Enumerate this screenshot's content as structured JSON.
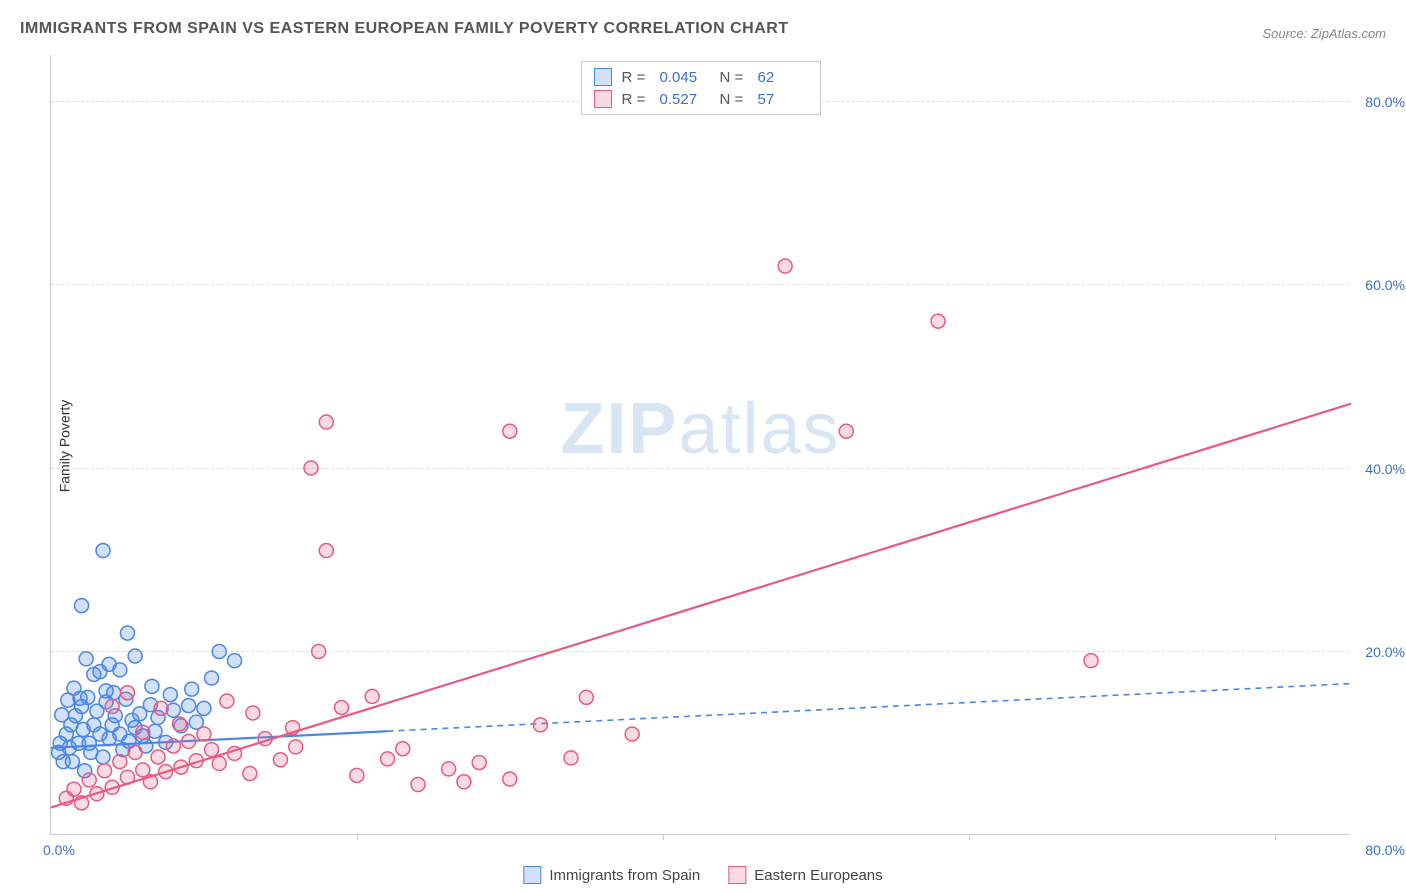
{
  "title": "IMMIGRANTS FROM SPAIN VS EASTERN EUROPEAN FAMILY POVERTY CORRELATION CHART",
  "source": "Source: ZipAtlas.com",
  "watermark_zip": "ZIP",
  "watermark_atlas": "atlas",
  "y_axis_title": "Family Poverty",
  "chart": {
    "type": "scatter",
    "background_color": "#ffffff",
    "grid_color": "#dddddd",
    "axis_color": "#cccccc",
    "xlim": [
      0,
      85
    ],
    "ylim": [
      0,
      85
    ],
    "y_ticks": [
      20,
      40,
      60,
      80
    ],
    "y_tick_labels": [
      "20.0%",
      "40.0%",
      "60.0%",
      "80.0%"
    ],
    "x_ticks": [
      20,
      40,
      60,
      80
    ],
    "x_label_start": "0.0%",
    "x_label_end": "80.0%",
    "marker_radius": 7,
    "marker_stroke_width": 1.5,
    "marker_fill_opacity": 0.25,
    "trend_line_width": 2.2,
    "series": [
      {
        "id": "spain",
        "label": "Immigrants from Spain",
        "color": "#4a86e8",
        "fill": "rgba(74,134,232,0.25)",
        "r_value": "0.045",
        "n_value": "62",
        "trend": {
          "x1": 0,
          "y1": 9.5,
          "x2": 85,
          "y2": 16.5
        },
        "trend_solid_until_x": 22,
        "trend_dash": "6,5",
        "points": [
          [
            0.5,
            9
          ],
          [
            0.6,
            10
          ],
          [
            0.8,
            8
          ],
          [
            1.0,
            11
          ],
          [
            1.2,
            9.5
          ],
          [
            1.3,
            12
          ],
          [
            1.4,
            8
          ],
          [
            1.6,
            13
          ],
          [
            1.8,
            10
          ],
          [
            2.0,
            14
          ],
          [
            2.1,
            11.5
          ],
          [
            2.2,
            7
          ],
          [
            2.4,
            15
          ],
          [
            2.5,
            10
          ],
          [
            2.6,
            9
          ],
          [
            2.8,
            12
          ],
          [
            3.0,
            13.5
          ],
          [
            3.2,
            11
          ],
          [
            3.4,
            8.5
          ],
          [
            3.6,
            14.5
          ],
          [
            3.8,
            10.5
          ],
          [
            4.0,
            12
          ],
          [
            4.2,
            13
          ],
          [
            4.5,
            11
          ],
          [
            4.7,
            9.3
          ],
          [
            4.9,
            14.8
          ],
          [
            5.1,
            10.2
          ],
          [
            5.3,
            12.5
          ],
          [
            5.5,
            11.7
          ],
          [
            5.8,
            13.2
          ],
          [
            6.0,
            10.8
          ],
          [
            6.2,
            9.7
          ],
          [
            6.5,
            14.2
          ],
          [
            6.8,
            11.3
          ],
          [
            7.0,
            12.8
          ],
          [
            7.5,
            10.1
          ],
          [
            8.0,
            13.6
          ],
          [
            8.5,
            11.9
          ],
          [
            9.0,
            14.1
          ],
          [
            9.5,
            12.3
          ],
          [
            10.0,
            13.8
          ],
          [
            2.0,
            25
          ],
          [
            3.4,
            31
          ],
          [
            4.5,
            18
          ],
          [
            5.0,
            22
          ],
          [
            5.5,
            19.5
          ],
          [
            3.2,
            17.8
          ],
          [
            11,
            20
          ],
          [
            12,
            19
          ],
          [
            1.5,
            16
          ],
          [
            2.8,
            17.5
          ],
          [
            4.1,
            15.5
          ],
          [
            6.6,
            16.2
          ],
          [
            7.8,
            15.3
          ],
          [
            9.2,
            15.9
          ],
          [
            10.5,
            17.1
          ],
          [
            3.8,
            18.6
          ],
          [
            2.3,
            19.2
          ],
          [
            1.1,
            14.7
          ],
          [
            0.7,
            13.1
          ],
          [
            1.9,
            14.9
          ],
          [
            3.6,
            15.7
          ]
        ]
      },
      {
        "id": "eastern",
        "label": "Eastern Europeans",
        "color": "#e85a7f",
        "fill": "rgba(232,90,127,0.22)",
        "r_value": "0.527",
        "n_value": "57",
        "trend": {
          "x1": 0,
          "y1": 3,
          "x2": 85,
          "y2": 47
        },
        "trend_solid_until_x": 85,
        "trend_dash": "",
        "points": [
          [
            1,
            4
          ],
          [
            1.5,
            5
          ],
          [
            2,
            3.5
          ],
          [
            2.5,
            6
          ],
          [
            3,
            4.5
          ],
          [
            3.5,
            7
          ],
          [
            4,
            5.2
          ],
          [
            4.5,
            8
          ],
          [
            5,
            6.3
          ],
          [
            5.5,
            9
          ],
          [
            6,
            7.1
          ],
          [
            6.5,
            5.8
          ],
          [
            7,
            8.5
          ],
          [
            7.5,
            6.9
          ],
          [
            8,
            9.7
          ],
          [
            8.5,
            7.4
          ],
          [
            9,
            10.2
          ],
          [
            9.5,
            8.1
          ],
          [
            10,
            11
          ],
          [
            10.5,
            9.3
          ],
          [
            11,
            7.8
          ],
          [
            12,
            8.9
          ],
          [
            13,
            6.7
          ],
          [
            14,
            10.5
          ],
          [
            15,
            8.2
          ],
          [
            16,
            9.6
          ],
          [
            18,
            31
          ],
          [
            17,
            40
          ],
          [
            20,
            6.5
          ],
          [
            22,
            8.3
          ],
          [
            24,
            5.5
          ],
          [
            26,
            7.2
          ],
          [
            27,
            5.8
          ],
          [
            28,
            7.9
          ],
          [
            30,
            6.1
          ],
          [
            32,
            12
          ],
          [
            34,
            8.4
          ],
          [
            35,
            15
          ],
          [
            38,
            11
          ],
          [
            18,
            45
          ],
          [
            30,
            44
          ],
          [
            48,
            62
          ],
          [
            58,
            56
          ],
          [
            52,
            44
          ],
          [
            68,
            19
          ],
          [
            4,
            14
          ],
          [
            5,
            15.5
          ],
          [
            6,
            11.2
          ],
          [
            7.2,
            13.8
          ],
          [
            8.4,
            12.1
          ],
          [
            11.5,
            14.6
          ],
          [
            13.2,
            13.3
          ],
          [
            15.8,
            11.7
          ],
          [
            17.5,
            20
          ],
          [
            19,
            13.9
          ],
          [
            21,
            15.1
          ],
          [
            23,
            9.4
          ]
        ]
      }
    ]
  },
  "legend_top": {
    "r_label": "R =",
    "n_label": "N ="
  }
}
